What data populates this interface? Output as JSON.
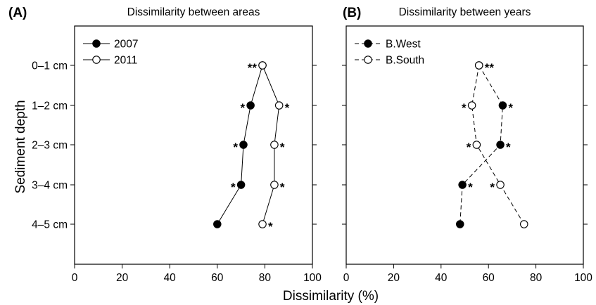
{
  "figure": {
    "ylabel": "Sediment depth",
    "xlabel": "Dissimilarity (%)"
  },
  "chart_data": [
    {
      "type": "scatter",
      "panel_label": "(A)",
      "title": "Dissimilarity between areas",
      "xlim": [
        0,
        100
      ],
      "xticks": [
        "0",
        "20",
        "40",
        "60",
        "80",
        "100"
      ],
      "categories": [
        "0–1 cm",
        "1–2 cm",
        "2–3 cm",
        "3–4 cm",
        "4–5 cm"
      ],
      "grid": false,
      "legend": "top-left",
      "series": [
        {
          "name": "2007",
          "marker": "filled",
          "line": "solid",
          "values": [
            79,
            74,
            71,
            70,
            60
          ],
          "annotations": [
            "**",
            "*",
            "*",
            "*",
            ""
          ]
        },
        {
          "name": "2011",
          "marker": "open",
          "line": "solid",
          "values": [
            79,
            86,
            84,
            84,
            79
          ],
          "annotations": [
            "",
            "*",
            "*",
            "*",
            "*"
          ]
        }
      ]
    },
    {
      "type": "scatter",
      "panel_label": "(B)",
      "title": "Dissimilarity between years",
      "xlim": [
        0,
        100
      ],
      "xticks": [
        "0",
        "20",
        "40",
        "60",
        "80",
        "100"
      ],
      "categories": [
        "0–1 cm",
        "1–2 cm",
        "2–3 cm",
        "3–4 cm",
        "4–5 cm"
      ],
      "grid": false,
      "legend": "top-left",
      "series": [
        {
          "name": "B.West",
          "marker": "filled",
          "line": "dashed",
          "values": [
            56,
            66,
            65,
            49,
            48
          ],
          "annotations": [
            "",
            "*",
            "*",
            "*",
            ""
          ]
        },
        {
          "name": "B.South",
          "marker": "open",
          "line": "dashed",
          "values": [
            56,
            53,
            55,
            65,
            75
          ],
          "annotations": [
            "**",
            "*",
            "*",
            "*",
            ""
          ]
        }
      ]
    }
  ]
}
